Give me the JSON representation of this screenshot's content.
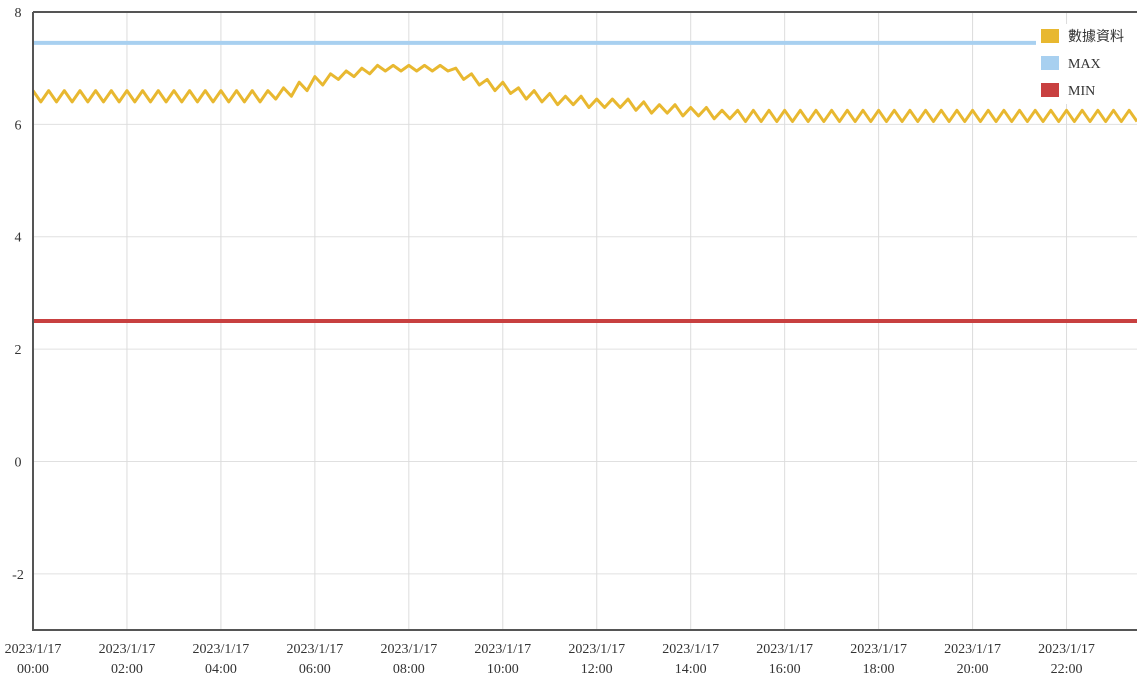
{
  "chart_data": {
    "type": "line",
    "x": [
      "2023/1/17 00:00",
      "2023/1/17 00:10",
      "2023/1/17 00:20",
      "2023/1/17 00:30",
      "2023/1/17 00:40",
      "2023/1/17 00:50",
      "2023/1/17 01:00",
      "2023/1/17 01:10",
      "2023/1/17 01:20",
      "2023/1/17 01:30",
      "2023/1/17 01:40",
      "2023/1/17 01:50",
      "2023/1/17 02:00",
      "2023/1/17 02:10",
      "2023/1/17 02:20",
      "2023/1/17 02:30",
      "2023/1/17 02:40",
      "2023/1/17 02:50",
      "2023/1/17 03:00",
      "2023/1/17 03:10",
      "2023/1/17 03:20",
      "2023/1/17 03:30",
      "2023/1/17 03:40",
      "2023/1/17 03:50",
      "2023/1/17 04:00",
      "2023/1/17 04:10",
      "2023/1/17 04:20",
      "2023/1/17 04:30",
      "2023/1/17 04:40",
      "2023/1/17 04:50",
      "2023/1/17 05:00",
      "2023/1/17 05:10",
      "2023/1/17 05:20",
      "2023/1/17 05:30",
      "2023/1/17 05:40",
      "2023/1/17 05:50",
      "2023/1/17 06:00",
      "2023/1/17 06:10",
      "2023/1/17 06:20",
      "2023/1/17 06:30",
      "2023/1/17 06:40",
      "2023/1/17 06:50",
      "2023/1/17 07:00",
      "2023/1/17 07:10",
      "2023/1/17 07:20",
      "2023/1/17 07:30",
      "2023/1/17 07:40",
      "2023/1/17 07:50",
      "2023/1/17 08:00",
      "2023/1/17 08:10",
      "2023/1/17 08:20",
      "2023/1/17 08:30",
      "2023/1/17 08:40",
      "2023/1/17 08:50",
      "2023/1/17 09:00",
      "2023/1/17 09:10",
      "2023/1/17 09:20",
      "2023/1/17 09:30",
      "2023/1/17 09:40",
      "2023/1/17 09:50",
      "2023/1/17 10:00",
      "2023/1/17 10:10",
      "2023/1/17 10:20",
      "2023/1/17 10:30",
      "2023/1/17 10:40",
      "2023/1/17 10:50",
      "2023/1/17 11:00",
      "2023/1/17 11:10",
      "2023/1/17 11:20",
      "2023/1/17 11:30",
      "2023/1/17 11:40",
      "2023/1/17 11:50",
      "2023/1/17 12:00",
      "2023/1/17 12:10",
      "2023/1/17 12:20",
      "2023/1/17 12:30",
      "2023/1/17 12:40",
      "2023/1/17 12:50",
      "2023/1/17 13:00",
      "2023/1/17 13:10",
      "2023/1/17 13:20",
      "2023/1/17 13:30",
      "2023/1/17 13:40",
      "2023/1/17 13:50",
      "2023/1/17 14:00",
      "2023/1/17 14:10",
      "2023/1/17 14:20",
      "2023/1/17 14:30",
      "2023/1/17 14:40",
      "2023/1/17 14:50",
      "2023/1/17 15:00",
      "2023/1/17 15:10",
      "2023/1/17 15:20",
      "2023/1/17 15:30",
      "2023/1/17 15:40",
      "2023/1/17 15:50",
      "2023/1/17 16:00",
      "2023/1/17 16:10",
      "2023/1/17 16:20",
      "2023/1/17 16:30",
      "2023/1/17 16:40",
      "2023/1/17 16:50",
      "2023/1/17 17:00",
      "2023/1/17 17:10",
      "2023/1/17 17:20",
      "2023/1/17 17:30",
      "2023/1/17 17:40",
      "2023/1/17 17:50",
      "2023/1/17 18:00",
      "2023/1/17 18:10",
      "2023/1/17 18:20",
      "2023/1/17 18:30",
      "2023/1/17 18:40",
      "2023/1/17 18:50",
      "2023/1/17 19:00",
      "2023/1/17 19:10",
      "2023/1/17 19:20",
      "2023/1/17 19:30",
      "2023/1/17 19:40",
      "2023/1/17 19:50",
      "2023/1/17 20:00",
      "2023/1/17 20:10",
      "2023/1/17 20:20",
      "2023/1/17 20:30",
      "2023/1/17 20:40",
      "2023/1/17 20:50",
      "2023/1/17 21:00",
      "2023/1/17 21:10",
      "2023/1/17 21:20",
      "2023/1/17 21:30",
      "2023/1/17 21:40",
      "2023/1/17 21:50",
      "2023/1/17 22:00",
      "2023/1/17 22:10",
      "2023/1/17 22:20",
      "2023/1/17 22:30",
      "2023/1/17 22:40",
      "2023/1/17 22:50",
      "2023/1/17 23:00",
      "2023/1/17 23:10",
      "2023/1/17 23:20",
      "2023/1/17 23:30"
    ],
    "series": [
      {
        "name": "數據資料",
        "color": "#e8b830",
        "values": [
          6.6,
          6.4,
          6.6,
          6.4,
          6.6,
          6.4,
          6.6,
          6.4,
          6.6,
          6.4,
          6.6,
          6.4,
          6.6,
          6.4,
          6.6,
          6.4,
          6.6,
          6.4,
          6.6,
          6.4,
          6.6,
          6.4,
          6.6,
          6.4,
          6.6,
          6.4,
          6.6,
          6.4,
          6.6,
          6.4,
          6.6,
          6.45,
          6.65,
          6.5,
          6.75,
          6.6,
          6.85,
          6.7,
          6.9,
          6.8,
          6.95,
          6.85,
          7.0,
          6.9,
          7.05,
          6.95,
          7.05,
          6.95,
          7.05,
          6.95,
          7.05,
          6.95,
          7.05,
          6.95,
          7.0,
          6.8,
          6.9,
          6.7,
          6.8,
          6.6,
          6.75,
          6.55,
          6.65,
          6.45,
          6.6,
          6.4,
          6.55,
          6.35,
          6.5,
          6.35,
          6.5,
          6.3,
          6.45,
          6.3,
          6.45,
          6.3,
          6.45,
          6.25,
          6.4,
          6.2,
          6.35,
          6.2,
          6.35,
          6.15,
          6.3,
          6.15,
          6.3,
          6.1,
          6.25,
          6.1,
          6.25,
          6.05,
          6.25,
          6.05,
          6.25,
          6.05,
          6.25,
          6.05,
          6.25,
          6.05,
          6.25,
          6.05,
          6.25,
          6.05,
          6.25,
          6.05,
          6.25,
          6.05,
          6.25,
          6.05,
          6.25,
          6.05,
          6.25,
          6.05,
          6.25,
          6.05,
          6.25,
          6.05,
          6.25,
          6.05,
          6.25,
          6.05,
          6.25,
          6.05,
          6.25,
          6.05,
          6.25,
          6.05,
          6.25,
          6.05,
          6.25,
          6.05,
          6.25,
          6.05,
          6.25,
          6.05,
          6.25,
          6.05,
          6.25,
          6.05,
          6.25,
          6.05
        ]
      },
      {
        "name": "MAX",
        "color": "#a8d0f0",
        "value": 7.45
      },
      {
        "name": "MIN",
        "color": "#c84040",
        "value": 2.5
      }
    ],
    "xlim": [
      "2023/1/17 00:00",
      "2023/1/17 23:30"
    ],
    "xticks": [
      "2023/1/17 00:00",
      "2023/1/17 02:00",
      "2023/1/17 04:00",
      "2023/1/17 06:00",
      "2023/1/17 08:00",
      "2023/1/17 10:00",
      "2023/1/17 12:00",
      "2023/1/17 14:00",
      "2023/1/17 16:00",
      "2023/1/17 18:00",
      "2023/1/17 20:00",
      "2023/1/17 22:00"
    ],
    "ylim": [
      -3,
      8
    ],
    "yticks": [
      -2,
      0,
      2,
      4,
      6,
      8
    ],
    "grid": true,
    "legend": "top-right"
  }
}
